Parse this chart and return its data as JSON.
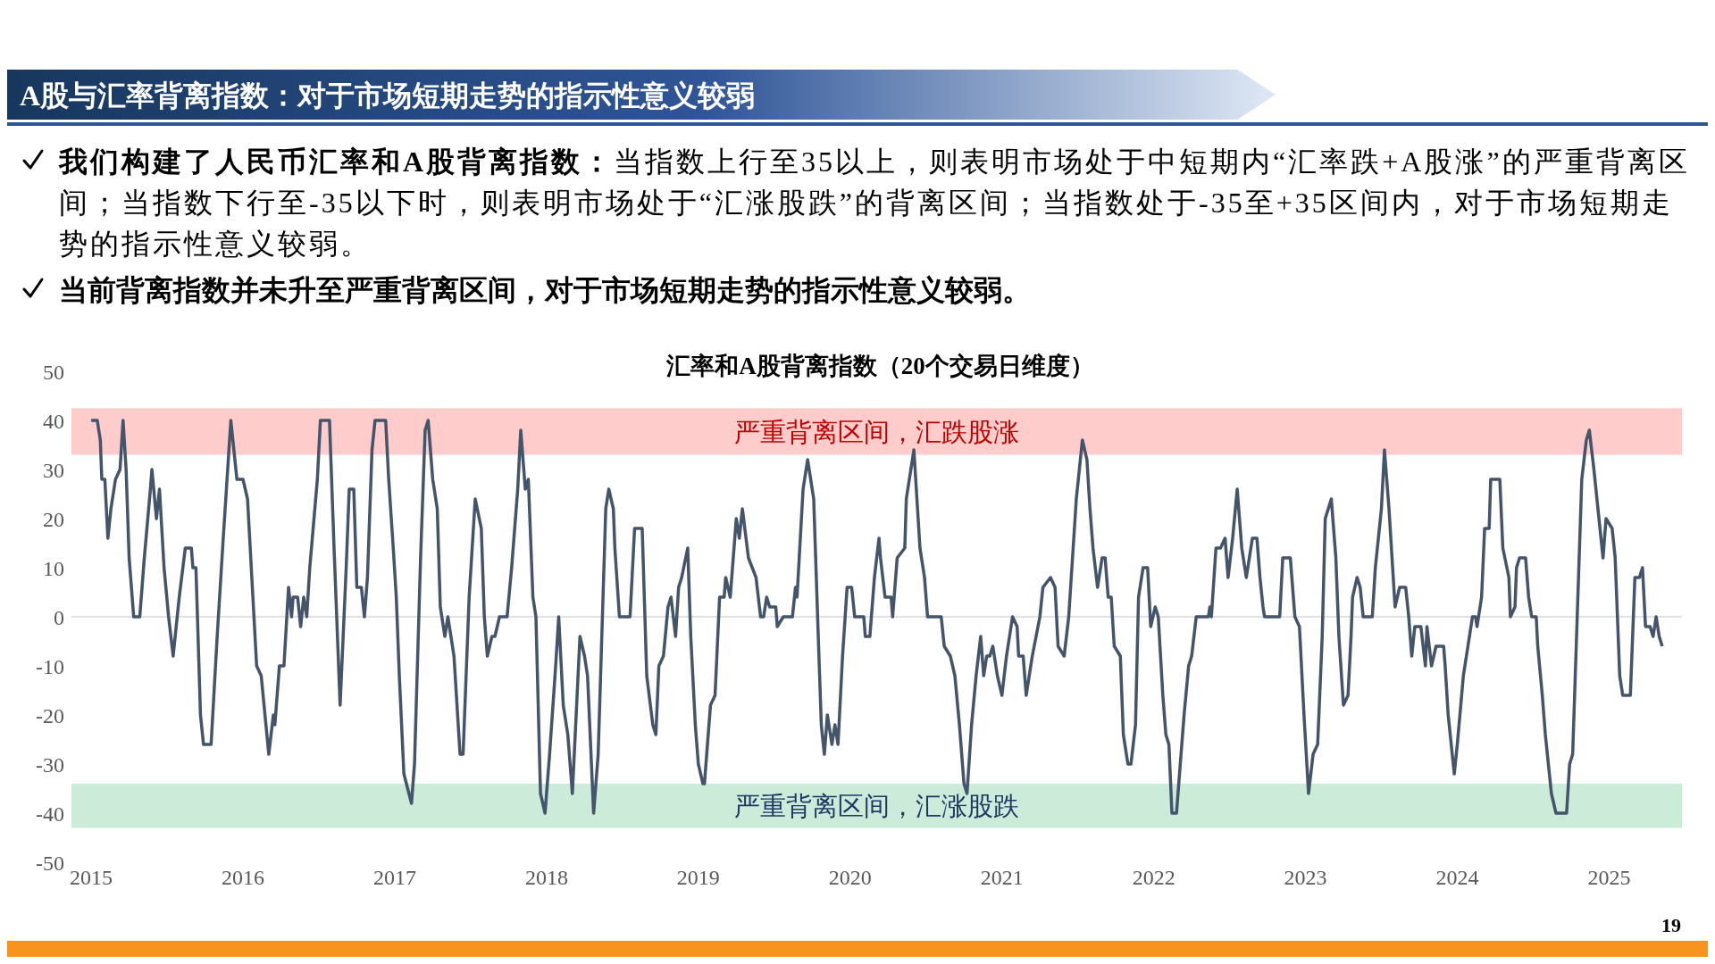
{
  "chart_data": {
    "type": "line",
    "title": "汇率和A股背离指数（20个交易日维度）",
    "annotations": [
      "A股与汇率背离指数：对于市场短期走势的指示性意义较弱",
      "我们构建了人民币汇率和A股背离指数：当指数上行至35以上，则表明市场处于中短期内“汇率跌+A股涨”的严重背离区间；当指数下行至-35以下时，则表明市场处于“汇涨股跌”的背离区间；当指数处于-35至+35区间内，对于市场短期走势的指示性意义较弱。",
      "当前背离指数并未升至严重背离区间，对于市场短期走势的指示性意义较弱。",
      "19"
    ],
    "x": [
      2015.0,
      2015.04,
      2015.06,
      2015.07,
      2015.09,
      2015.11,
      2015.13,
      2015.16,
      2015.19,
      2015.21,
      2015.23,
      2015.25,
      2015.28,
      2015.32,
      2015.35,
      2015.39,
      2015.4,
      2015.43,
      2015.45,
      2015.48,
      2015.51,
      2015.54,
      2015.56,
      2015.58,
      2015.62,
      2015.66,
      2015.67,
      2015.69,
      2015.72,
      2015.74,
      2015.79,
      2015.83,
      2015.87,
      2015.92,
      2015.96,
      2016.0,
      2016.03,
      2016.09,
      2016.12,
      2016.17,
      2016.2,
      2016.21,
      2016.24,
      2016.27,
      2016.3,
      2016.32,
      2016.33,
      2016.36,
      2016.38,
      2016.4,
      2016.42,
      2016.44,
      2016.49,
      2016.51,
      2016.57,
      2016.6,
      2016.64,
      2016.68,
      2016.7,
      2016.73,
      2016.75,
      2016.78,
      2016.8,
      2016.82,
      2016.85,
      2016.87,
      2016.94,
      2016.96,
      2016.99,
      2017.01,
      2017.03,
      2017.06,
      2017.11,
      2017.13,
      2017.17,
      2017.2,
      2017.22,
      2017.25,
      2017.28,
      2017.3,
      2017.33,
      2017.35,
      2017.39,
      2017.43,
      2017.45,
      2017.49,
      2017.53,
      2017.57,
      2017.59,
      2017.61,
      2017.64,
      2017.66,
      2017.69,
      2017.74,
      2017.77,
      2017.81,
      2017.83,
      2017.86,
      2017.88,
      2017.91,
      2017.93,
      2017.96,
      2017.99,
      2018.02,
      2018.06,
      2018.08,
      2018.11,
      2018.14,
      2018.17,
      2018.22,
      2018.25,
      2018.27,
      2018.31,
      2018.34,
      2018.36,
      2018.39,
      2018.41,
      2018.44,
      2018.45,
      2018.48,
      2018.55,
      2018.58,
      2018.63,
      2018.66,
      2018.7,
      2018.72,
      2018.74,
      2018.77,
      2018.8,
      2018.82,
      2018.85,
      2018.87,
      2018.89,
      2018.93,
      2018.95,
      2018.98,
      2019.0,
      2019.03,
      2019.04,
      2019.08,
      2019.11,
      2019.14,
      2019.17,
      2019.18,
      2019.21,
      2019.24,
      2019.25,
      2019.27,
      2019.29,
      2019.33,
      2019.38,
      2019.41,
      2019.43,
      2019.45,
      2019.47,
      2019.51,
      2019.52,
      2019.56,
      2019.62,
      2019.64,
      2019.65,
      2019.69,
      2019.72,
      2019.76,
      2019.79,
      2019.81,
      2019.83,
      2019.85,
      2019.88,
      2019.9,
      2019.92,
      2019.95,
      2019.98,
      2020.01,
      2020.03,
      2020.09,
      2020.1,
      2020.13,
      2020.16,
      2020.19,
      2020.2,
      2020.23,
      2020.27,
      2020.28,
      2020.31,
      2020.36,
      2020.37,
      2020.39,
      2020.42,
      2020.46,
      2020.49,
      2020.51,
      2020.6,
      2020.62,
      2020.66,
      2020.69,
      2020.72,
      2020.75,
      2020.77,
      2020.8,
      2020.83,
      2020.86,
      2020.88,
      2020.9,
      2020.92,
      2020.94,
      2020.97,
      2021.0,
      2021.03,
      2021.07,
      2021.1,
      2021.11,
      2021.14,
      2021.16,
      2021.2,
      2021.25,
      2021.27,
      2021.32,
      2021.35,
      2021.37,
      2021.41,
      2021.44,
      2021.49,
      2021.53,
      2021.56,
      2021.58,
      2021.6,
      2021.63,
      2021.66,
      2021.68,
      2021.7,
      2021.72,
      2021.74,
      2021.78,
      2021.8,
      2021.83,
      2021.85,
      2021.88,
      2021.9,
      2021.93,
      2021.96,
      2021.98,
      2022.01,
      2022.03,
      2022.06,
      2022.08,
      2022.1,
      2022.12,
      2022.15,
      2022.17,
      2022.2,
      2022.23,
      2022.25,
      2022.28,
      2022.36,
      2022.37,
      2022.38,
      2022.41,
      2022.44,
      2022.47,
      2022.49,
      2022.52,
      2022.55,
      2022.58,
      2022.61,
      2022.65,
      2022.68,
      2022.7,
      2022.72,
      2022.73,
      2022.83,
      2022.85,
      2022.9,
      2022.93,
      2022.96,
      2022.99,
      2023.02,
      2023.05,
      2023.08,
      2023.11,
      2023.13,
      2023.17,
      2023.2,
      2023.22,
      2023.25,
      2023.28,
      2023.3,
      2023.31,
      2023.34,
      2023.36,
      2023.38,
      2023.44,
      2023.46,
      2023.5,
      2023.52,
      2023.55,
      2023.59,
      2023.62,
      2023.66,
      2023.68,
      2023.7,
      2023.72,
      2023.76,
      2023.79,
      2023.8,
      2023.83,
      2023.86,
      2023.91,
      2023.92,
      2023.94,
      2023.98,
      2024.0,
      2024.04,
      2024.07,
      2024.1,
      2024.12,
      2024.13,
      2024.16,
      2024.18,
      2024.21,
      2024.22,
      2024.28,
      2024.3,
      2024.34,
      2024.35,
      2024.38,
      2024.39,
      2024.41,
      2024.45,
      2024.47,
      2024.49,
      2024.52,
      2024.53,
      2024.56,
      2024.58,
      2024.62,
      2024.65,
      2024.72,
      2024.74,
      2024.76,
      2024.79,
      2024.82,
      2024.85,
      2024.87,
      2024.9,
      2024.92,
      2024.94,
      2024.96,
      2024.98,
      2025.02,
      2025.04,
      2025.07,
      2025.09,
      2025.14,
      2025.17,
      2025.2,
      2025.22,
      2025.24,
      2025.27,
      2025.29,
      2025.31,
      2025.33,
      2025.35
    ],
    "series": [
      {
        "color": "#44546a",
        "values": [
          40,
          40,
          36,
          28,
          28,
          16,
          22,
          28,
          30,
          40,
          30,
          12,
          0,
          0,
          12,
          26,
          30,
          20,
          26,
          10,
          0,
          -8,
          -2,
          4,
          14,
          14,
          10,
          10,
          -20,
          -26,
          -26,
          -4,
          16,
          40,
          28,
          28,
          24,
          -10,
          -12,
          -28,
          -20,
          -22,
          -10,
          -10,
          6,
          0,
          4,
          4,
          -2,
          4,
          0,
          10,
          28,
          40,
          40,
          14,
          -18,
          10,
          26,
          26,
          6,
          6,
          0,
          8,
          34,
          40,
          40,
          28,
          14,
          4,
          -12,
          -32,
          -38,
          -30,
          12,
          38,
          40,
          28,
          22,
          2,
          -4,
          0,
          -8,
          -28,
          -28,
          4,
          24,
          18,
          0,
          -8,
          -4,
          -4,
          0,
          0,
          10,
          26,
          38,
          26,
          28,
          4,
          0,
          -36,
          -40,
          -28,
          -10,
          0,
          -18,
          -24,
          -36,
          -4,
          -8,
          -12,
          -40,
          -28,
          -8,
          22,
          26,
          22,
          14,
          0,
          0,
          18,
          18,
          -12,
          -22,
          -24,
          -10,
          -8,
          2,
          4,
          -4,
          6,
          8,
          14,
          -4,
          -22,
          -30,
          -34,
          -34,
          -18,
          -16,
          4,
          4,
          8,
          4,
          16,
          20,
          16,
          22,
          12,
          8,
          0,
          0,
          4,
          2,
          2,
          -2,
          0,
          0,
          6,
          4,
          26,
          32,
          24,
          -4,
          -22,
          -28,
          -20,
          -26,
          -22,
          -26,
          -8,
          6,
          6,
          0,
          0,
          -4,
          -4,
          8,
          16,
          12,
          4,
          4,
          0,
          12,
          14,
          24,
          28,
          34,
          14,
          8,
          0,
          0,
          -6,
          -8,
          -12,
          -22,
          -34,
          -36,
          -22,
          -12,
          -4,
          -12,
          -8,
          -8,
          -6,
          -12,
          -16,
          -8,
          0,
          -2,
          -8,
          -8,
          -16,
          -8,
          0,
          6,
          8,
          6,
          -6,
          -8,
          0,
          24,
          36,
          32,
          22,
          14,
          6,
          12,
          12,
          4,
          4,
          -6,
          -8,
          -24,
          -30,
          -30,
          -22,
          4,
          10,
          10,
          -2,
          2,
          0,
          -16,
          -24,
          -26,
          -40,
          -40,
          -32,
          -20,
          -10,
          -8,
          0,
          0,
          2,
          0,
          14,
          14,
          16,
          8,
          16,
          26,
          14,
          8,
          16,
          16,
          8,
          2,
          0,
          0,
          12,
          12,
          0,
          -2,
          -20,
          -36,
          -28,
          -26,
          -4,
          20,
          24,
          12,
          -4,
          -18,
          -16,
          -4,
          4,
          8,
          6,
          0,
          0,
          10,
          22,
          34,
          22,
          2,
          6,
          6,
          0,
          -8,
          -2,
          -2,
          -10,
          -2,
          -10,
          -6,
          -6,
          -10,
          -20,
          -32,
          -26,
          -12,
          -6,
          0,
          0,
          -2,
          4,
          18,
          18,
          28,
          28,
          14,
          8,
          0,
          2,
          10,
          12,
          12,
          4,
          0,
          0,
          -6,
          -16,
          -24,
          -36,
          -40,
          -40,
          -30,
          -28,
          0,
          28,
          36,
          38,
          30,
          24,
          18,
          12,
          20,
          18,
          12,
          -12,
          -16,
          -16,
          8,
          8,
          10,
          -2,
          -2,
          -4,
          0,
          -4,
          -6
        ]
      }
    ],
    "xlim": [
      2014.87,
      2025.48
    ],
    "xticks": [
      2015,
      2016,
      2017,
      2018,
      2019,
      2020,
      2021,
      2022,
      2023,
      2024,
      2025
    ],
    "ylim": [
      -50,
      50
    ],
    "yticks": [
      -50,
      -40,
      -30,
      -20,
      -10,
      0,
      10,
      20,
      30,
      40,
      50
    ],
    "marker": "none",
    "line_style": "solid",
    "ref_lines": [
      {
        "axis": "y",
        "value": 0,
        "color": "#d9d9d9"
      }
    ],
    "bands": [
      {
        "axis": "y",
        "from": 33,
        "to": 42.5,
        "label": "严重背离区间，汇跌股涨",
        "color": "#ffcccc"
      },
      {
        "axis": "y",
        "from": -43,
        "to": -34,
        "label": "严重背离区间，汇涨股跌",
        "color": "#ccecd9"
      }
    ]
  }
}
